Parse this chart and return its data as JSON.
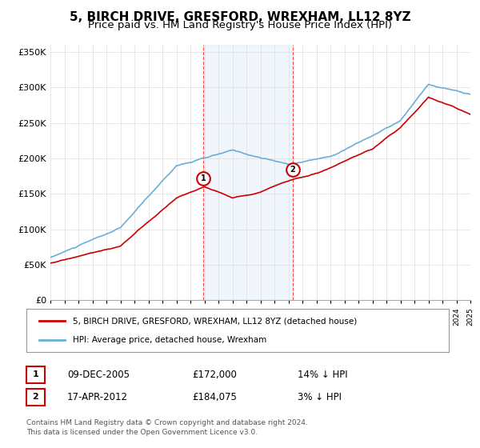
{
  "title": "5, BIRCH DRIVE, GRESFORD, WREXHAM, LL12 8YZ",
  "subtitle": "Price paid vs. HM Land Registry's House Price Index (HPI)",
  "xlabel": "",
  "ylabel": "",
  "ylim": [
    0,
    360000
  ],
  "yticks": [
    0,
    50000,
    100000,
    150000,
    200000,
    250000,
    300000,
    350000
  ],
  "ytick_labels": [
    "£0",
    "£50K",
    "£100K",
    "£150K",
    "£200K",
    "£250K",
    "£300K",
    "£350K"
  ],
  "sale1_date": 2005.93,
  "sale1_price": 172000,
  "sale1_label": "1",
  "sale2_date": 2012.29,
  "sale2_price": 184075,
  "sale2_label": "2",
  "hpi_color": "#6baed6",
  "price_color": "#cc0000",
  "shade_color": "#d6e8f7",
  "legend_price_label": "5, BIRCH DRIVE, GRESFORD, WREXHAM, LL12 8YZ (detached house)",
  "legend_hpi_label": "HPI: Average price, detached house, Wrexham",
  "table_row1": [
    "1",
    "09-DEC-2005",
    "£172,000",
    "14% ↓ HPI"
  ],
  "table_row2": [
    "2",
    "17-APR-2012",
    "£184,075",
    "3% ↓ HPI"
  ],
  "footnote": "Contains HM Land Registry data © Crown copyright and database right 2024.\nThis data is licensed under the Open Government Licence v3.0.",
  "background_color": "#ffffff",
  "grid_color": "#dddddd",
  "title_fontsize": 11,
  "subtitle_fontsize": 9.5
}
